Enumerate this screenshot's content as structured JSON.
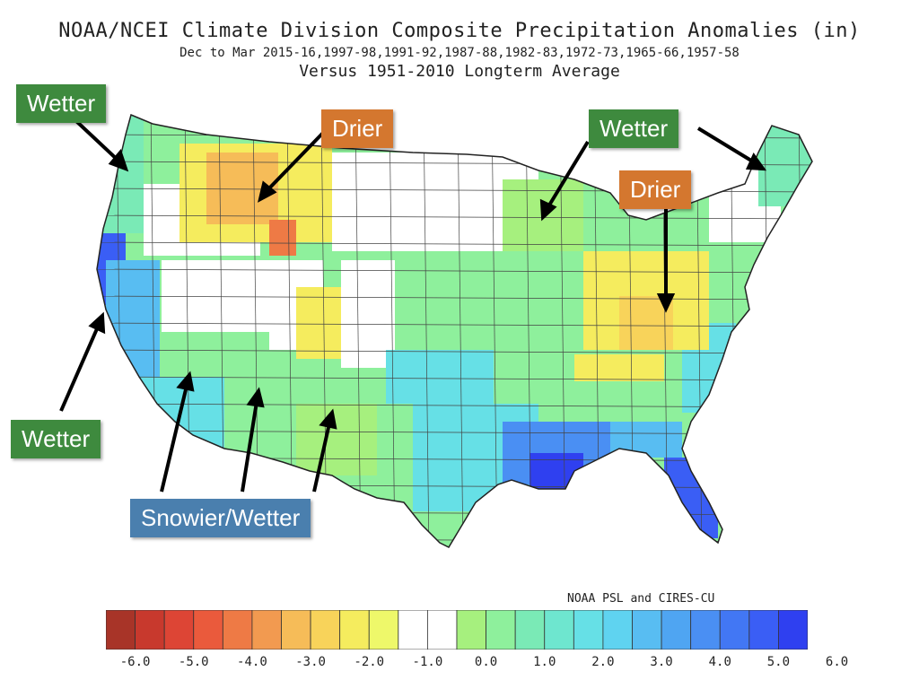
{
  "title": {
    "line1": "NOAA/NCEI Climate Division Composite Precipitation Anomalies (in)",
    "line2": "Dec to Mar  2015-16,1997-98,1991-92,1987-88,1982-83,1972-73,1965-66,1957-58",
    "line3": "Versus 1951-2010 Longterm Average"
  },
  "annotations": {
    "wetter_nw": "Wetter",
    "drier_west": "Drier",
    "wetter_ne": "Wetter",
    "drier_east": "Drier",
    "wetter_ca": "Wetter",
    "snowier": "Snowier/Wetter"
  },
  "credit": "NOAA PSL and CIRES-CU",
  "legend": {
    "ticks": [
      "-6.0",
      "-5.0",
      "-4.0",
      "-3.0",
      "-2.0",
      "-1.0",
      "0.0",
      "1.0",
      "2.0",
      "3.0",
      "4.0",
      "5.0",
      "6.0"
    ],
    "colors": [
      "#a83428",
      "#c8392d",
      "#dd4535",
      "#ea5a3c",
      "#ee7a45",
      "#f29a50",
      "#f6bc58",
      "#f8d35a",
      "#f5ec5e",
      "#eef86a",
      "#ffffff",
      "#ffffff",
      "#a6f07e",
      "#8ef09c",
      "#7aeab6",
      "#6ee6cf",
      "#66e0e6",
      "#5fd3f0",
      "#58bdf2",
      "#4fa5f2",
      "#4a8ff3",
      "#4277f4",
      "#3a5ef5",
      "#2f40f0"
    ]
  },
  "colors": {
    "wetter_label": "#3e8a3e",
    "drier_label": "#d4772f",
    "snowier_label": "#4a7fae"
  }
}
